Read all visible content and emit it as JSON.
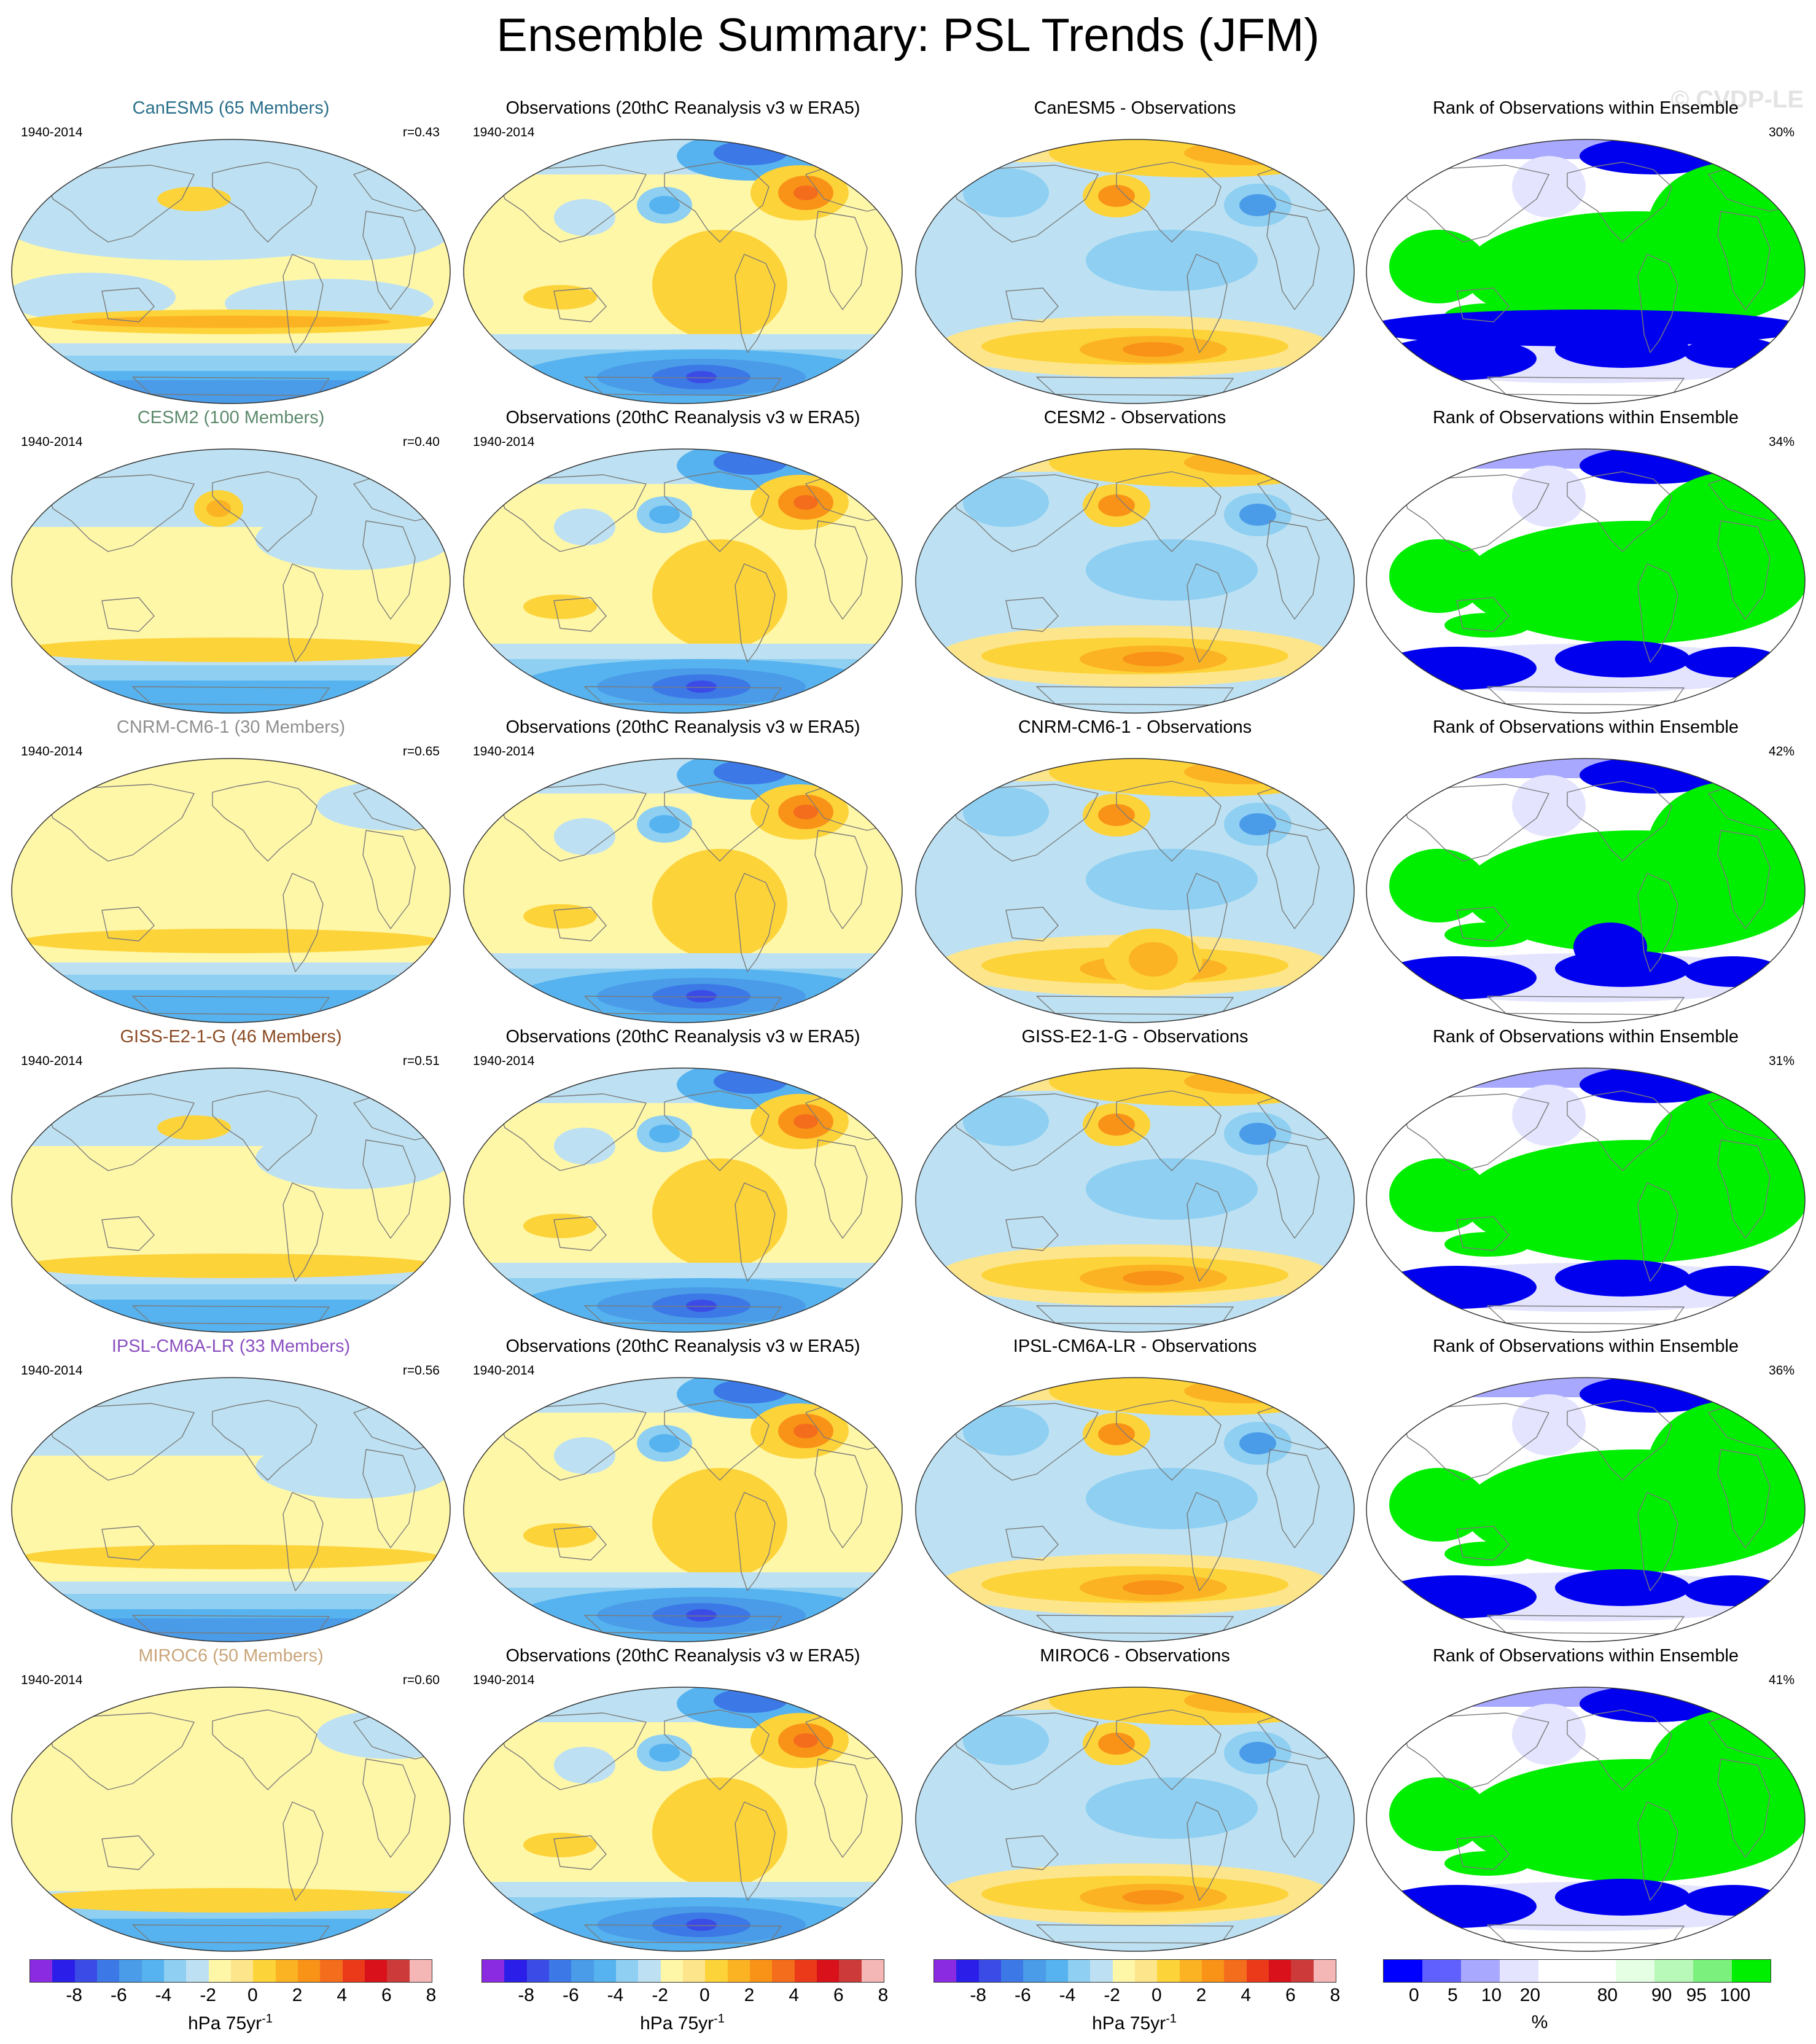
{
  "title": "Ensemble Summary: PSL Trends (JFM)",
  "watermark": "© CVDP-LE",
  "period": "1940-2014",
  "obs_title": "Observations (20thC Reanalysis v3 w ERA5)",
  "rank_title": "Rank of Observations within Ensemble",
  "rows": [
    {
      "model_title": "CanESM5 (65 Members)",
      "model_color": "#2a6f8a",
      "corr": "r=0.43",
      "diff_title": "CanESM5 - Observations",
      "rank_pct": "30%"
    },
    {
      "model_title": "CESM2 (100 Members)",
      "model_color": "#5d8a6c",
      "corr": "r=0.40",
      "diff_title": "CESM2 - Observations",
      "rank_pct": "34%"
    },
    {
      "model_title": "CNRM-CM6-1 (30 Members)",
      "model_color": "#8f8f8f",
      "corr": "r=0.65",
      "diff_title": "CNRM-CM6-1 - Observations",
      "rank_pct": "42%"
    },
    {
      "model_title": "GISS-E2-1-G (46 Members)",
      "model_color": "#8a4a23",
      "corr": "r=0.51",
      "diff_title": "GISS-E2-1-G - Observations",
      "rank_pct": "31%"
    },
    {
      "model_title": "IPSL-CM6A-LR (33 Members)",
      "model_color": "#8a4fc0",
      "corr": "r=0.56",
      "diff_title": "IPSL-CM6A-LR - Observations",
      "rank_pct": "36%"
    },
    {
      "model_title": "MIROC6 (50 Members)",
      "model_color": "#c9a57a",
      "corr": "r=0.60",
      "diff_title": "MIROC6 - Observations",
      "rank_pct": "41%"
    }
  ],
  "colorbars": {
    "trend": {
      "colors": [
        "#8a2be2",
        "#2b1ee8",
        "#3b4ce6",
        "#3c78e6",
        "#4a9be8",
        "#56b3ef",
        "#8ecff2",
        "#bde1f2",
        "#fff7a8",
        "#fde58c",
        "#fdd33a",
        "#fbb324",
        "#f99318",
        "#f46d1c",
        "#ea3a1a",
        "#d9111a",
        "#cc3a3a",
        "#f5b6b6"
      ],
      "ticks": [
        "-8",
        "-6",
        "-4",
        "-2",
        "0",
        "2",
        "4",
        "6",
        "8"
      ],
      "label": "hPa 75yr",
      "label_sup": "-1"
    },
    "rank": {
      "colors": [
        "#0000ff",
        "#6060ff",
        "#a8a8ff",
        "#e4e4ff",
        "#ffffff",
        "#ffffff",
        "#e4ffe4",
        "#b8f8b8",
        "#7cf07c",
        "#00ee00"
      ],
      "ticks": [
        "0",
        "5",
        "10",
        "20",
        "80",
        "90",
        "95",
        "100"
      ],
      "label": "%"
    }
  },
  "colors": {
    "land_outline": "#7a7a7a",
    "map_border": "#333333",
    "rank_green": "#00ee00",
    "rank_blue": "#0000ee"
  }
}
